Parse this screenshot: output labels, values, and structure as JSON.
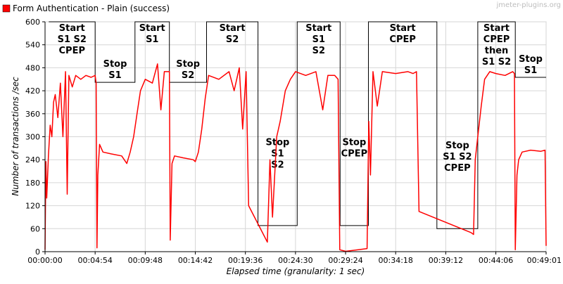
{
  "chart_data": {
    "type": "line",
    "title": "",
    "legend": {
      "entries": [
        {
          "name": "Form Authentication - Plain (success)",
          "color": "#ff0000"
        }
      ],
      "placement": "top-left"
    },
    "watermark": "jmeter-plugins.org",
    "xlabel": "Elapsed time (granularity: 1 sec)",
    "ylabel": "Number of transactions /sec",
    "xlim": [
      "00:00:00",
      "00:49:01"
    ],
    "ylim": [
      0,
      600
    ],
    "grid": true,
    "x_ticks": [
      "00:00:00",
      "00:04:54",
      "00:09:48",
      "00:14:42",
      "00:19:36",
      "00:24:30",
      "00:29:24",
      "00:34:18",
      "00:39:12",
      "00:44:06",
      "00:49:01"
    ],
    "y_ticks": [
      "0",
      "60",
      "120",
      "180",
      "240",
      "300",
      "360",
      "420",
      "480",
      "540",
      "600"
    ],
    "series": [
      {
        "name": "Form Authentication - Plain (success)",
        "color": "#ff0000",
        "points": [
          [
            "00:00:00",
            5
          ],
          [
            "00:00:05",
            235
          ],
          [
            "00:00:10",
            140
          ],
          [
            "00:00:20",
            250
          ],
          [
            "00:00:30",
            330
          ],
          [
            "00:00:40",
            300
          ],
          [
            "00:00:50",
            390
          ],
          [
            "00:01:00",
            410
          ],
          [
            "00:01:15",
            350
          ],
          [
            "00:01:30",
            440
          ],
          [
            "00:01:45",
            300
          ],
          [
            "00:02:00",
            470
          ],
          [
            "00:02:10",
            150
          ],
          [
            "00:02:20",
            460
          ],
          [
            "00:02:40",
            430
          ],
          [
            "00:03:00",
            460
          ],
          [
            "00:03:30",
            450
          ],
          [
            "00:04:00",
            460
          ],
          [
            "00:04:30",
            455
          ],
          [
            "00:04:54",
            460
          ],
          [
            "00:05:00",
            440
          ],
          [
            "00:05:05",
            10
          ],
          [
            "00:05:10",
            200
          ],
          [
            "00:05:20",
            280
          ],
          [
            "00:05:40",
            260
          ],
          [
            "00:06:30",
            255
          ],
          [
            "00:07:30",
            250
          ],
          [
            "00:08:00",
            230
          ],
          [
            "00:08:20",
            260
          ],
          [
            "00:08:40",
            300
          ],
          [
            "00:09:00",
            360
          ],
          [
            "00:09:20",
            420
          ],
          [
            "00:09:48",
            450
          ],
          [
            "00:10:30",
            440
          ],
          [
            "00:11:00",
            490
          ],
          [
            "00:11:20",
            370
          ],
          [
            "00:11:40",
            470
          ],
          [
            "00:12:10",
            470
          ],
          [
            "00:12:15",
            30
          ],
          [
            "00:12:25",
            230
          ],
          [
            "00:12:40",
            250
          ],
          [
            "00:13:30",
            245
          ],
          [
            "00:14:30",
            240
          ],
          [
            "00:14:42",
            235
          ],
          [
            "00:15:00",
            260
          ],
          [
            "00:15:20",
            320
          ],
          [
            "00:15:40",
            400
          ],
          [
            "00:16:00",
            460
          ],
          [
            "00:17:00",
            450
          ],
          [
            "00:18:00",
            470
          ],
          [
            "00:18:30",
            420
          ],
          [
            "00:19:00",
            480
          ],
          [
            "00:19:20",
            320
          ],
          [
            "00:19:40",
            470
          ],
          [
            "00:19:55",
            120
          ],
          [
            "00:21:45",
            25
          ],
          [
            "00:22:00",
            240
          ],
          [
            "00:22:15",
            90
          ],
          [
            "00:22:40",
            300
          ],
          [
            "00:23:00",
            340
          ],
          [
            "00:23:30",
            420
          ],
          [
            "00:24:00",
            450
          ],
          [
            "00:24:30",
            470
          ],
          [
            "00:25:30",
            460
          ],
          [
            "00:26:30",
            470
          ],
          [
            "00:27:10",
            370
          ],
          [
            "00:27:40",
            460
          ],
          [
            "00:28:20",
            460
          ],
          [
            "00:28:40",
            450
          ],
          [
            "00:28:50",
            5
          ],
          [
            "00:29:24",
            1
          ],
          [
            "00:31:30",
            8
          ],
          [
            "00:31:40",
            340
          ],
          [
            "00:31:50",
            200
          ],
          [
            "00:32:05",
            470
          ],
          [
            "00:32:30",
            380
          ],
          [
            "00:33:00",
            470
          ],
          [
            "00:34:18",
            465
          ],
          [
            "00:35:30",
            470
          ],
          [
            "00:36:00",
            465
          ],
          [
            "00:36:20",
            470
          ],
          [
            "00:36:35",
            105
          ],
          [
            "00:41:40",
            50
          ],
          [
            "00:41:55",
            45
          ],
          [
            "00:42:05",
            240
          ],
          [
            "00:42:20",
            300
          ],
          [
            "00:42:40",
            380
          ],
          [
            "00:43:00",
            450
          ],
          [
            "00:43:30",
            470
          ],
          [
            "00:44:06",
            465
          ],
          [
            "00:45:00",
            460
          ],
          [
            "00:45:45",
            470
          ],
          [
            "00:45:55",
            465
          ],
          [
            "00:46:00",
            5
          ],
          [
            "00:46:10",
            200
          ],
          [
            "00:46:20",
            240
          ],
          [
            "00:46:40",
            260
          ],
          [
            "00:47:30",
            265
          ],
          [
            "00:48:30",
            262
          ],
          [
            "00:48:55",
            265
          ],
          [
            "00:49:01",
            15
          ]
        ]
      }
    ],
    "annotations": [
      {
        "lines": [
          "Start",
          "S1 S2",
          "CPEP"
        ],
        "level": 600,
        "from": "00:00:22",
        "to": "00:04:54"
      },
      {
        "lines": [
          "Stop",
          "S1"
        ],
        "level": 442,
        "from": "00:04:54",
        "to": "00:08:48"
      },
      {
        "lines": [
          "Start",
          "S1"
        ],
        "level": 600,
        "from": "00:08:48",
        "to": "00:12:10"
      },
      {
        "lines": [
          "Stop",
          "S2"
        ],
        "level": 442,
        "from": "00:12:10",
        "to": "00:15:48"
      },
      {
        "lines": [
          "Start",
          "S2"
        ],
        "level": 600,
        "from": "00:15:48",
        "to": "00:20:50"
      },
      {
        "lines": [
          "Stop",
          "S1",
          "S2"
        ],
        "level": 68,
        "from": "00:20:50",
        "to": "00:24:40"
      },
      {
        "lines": [
          "Start",
          "S1",
          "S2"
        ],
        "level": 600,
        "from": "00:24:40",
        "to": "00:28:52"
      },
      {
        "lines": [
          "Stop",
          "CPEP"
        ],
        "level": 68,
        "from": "00:28:52",
        "to": "00:31:38"
      },
      {
        "lines": [
          "Start",
          "CPEP"
        ],
        "level": 600,
        "from": "00:31:38",
        "to": "00:38:20"
      },
      {
        "lines": [
          "Stop",
          "S1 S2",
          "CPEP"
        ],
        "level": 60,
        "from": "00:38:20",
        "to": "00:42:20"
      },
      {
        "lines": [
          "Start",
          "CPEP",
          "then",
          "S1 S2"
        ],
        "level": 600,
        "from": "00:42:20",
        "to": "00:46:00"
      },
      {
        "lines": [
          "Stop",
          "S1"
        ],
        "level": 455,
        "from": "00:46:00",
        "to": "00:49:01"
      }
    ]
  }
}
